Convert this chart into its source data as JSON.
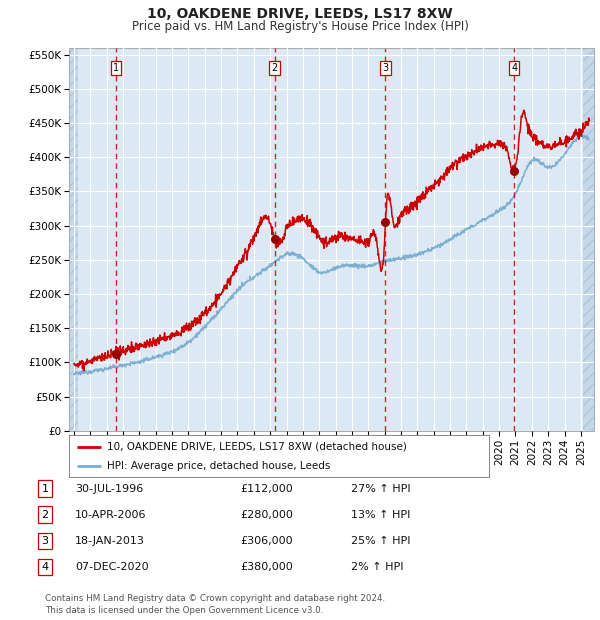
{
  "title": "10, OAKDENE DRIVE, LEEDS, LS17 8XW",
  "subtitle": "Price paid vs. HM Land Registry's House Price Index (HPI)",
  "ylim": [
    0,
    560000
  ],
  "yticks": [
    0,
    50000,
    100000,
    150000,
    200000,
    250000,
    300000,
    350000,
    400000,
    450000,
    500000,
    550000
  ],
  "ytick_labels": [
    "£0",
    "£50K",
    "£100K",
    "£150K",
    "£200K",
    "£250K",
    "£300K",
    "£350K",
    "£400K",
    "£450K",
    "£500K",
    "£550K"
  ],
  "xlim_start": 1993.7,
  "xlim_end": 2025.8,
  "plot_bg_color": "#dce9f5",
  "grid_color": "#ffffff",
  "red_line_color": "#cc0000",
  "blue_line_color": "#7aadce",
  "dashed_line_color": "#cc0000",
  "marker_color": "#990000",
  "sale_dates": [
    1996.58,
    2006.27,
    2013.05,
    2020.92
  ],
  "sale_prices": [
    112000,
    280000,
    306000,
    380000
  ],
  "sale_labels": [
    "1",
    "2",
    "3",
    "4"
  ],
  "legend_red_label": "10, OAKDENE DRIVE, LEEDS, LS17 8XW (detached house)",
  "legend_blue_label": "HPI: Average price, detached house, Leeds",
  "table_data": [
    [
      "1",
      "30-JUL-1996",
      "£112,000",
      "27% ↑ HPI"
    ],
    [
      "2",
      "10-APR-2006",
      "£280,000",
      "13% ↑ HPI"
    ],
    [
      "3",
      "18-JAN-2013",
      "£306,000",
      "25% ↑ HPI"
    ],
    [
      "4",
      "07-DEC-2020",
      "£380,000",
      "2% ↑ HPI"
    ]
  ],
  "footer_text": "Contains HM Land Registry data © Crown copyright and database right 2024.\nThis data is licensed under the Open Government Licence v3.0.",
  "title_fontsize": 10,
  "subtitle_fontsize": 8.5,
  "tick_fontsize": 7.5,
  "label_fontsize": 7.5
}
